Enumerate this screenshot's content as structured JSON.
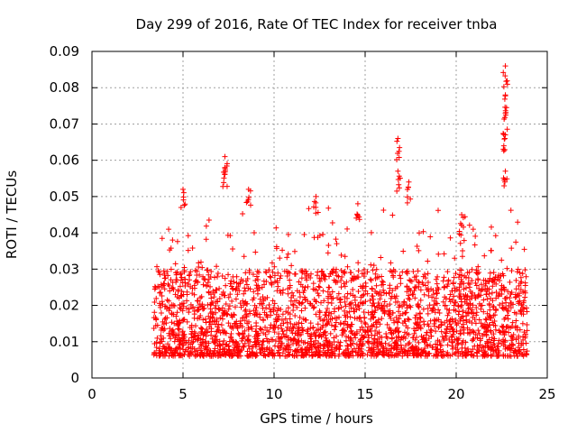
{
  "chart_data": {
    "type": "scatter",
    "title": "Day 299 of 2016, Rate Of TEC Index for receiver tnba",
    "xlabel": "GPS time / hours",
    "ylabel": "ROTI / TECUs",
    "xlim": [
      0,
      25
    ],
    "ylim": [
      0,
      0.09
    ],
    "x_ticks": [
      "0",
      "5",
      "10",
      "15",
      "20",
      "25"
    ],
    "y_ticks": [
      "0",
      "0.01",
      "0.02",
      "0.03",
      "0.04",
      "0.05",
      "0.06",
      "0.07",
      "0.08",
      "0.09"
    ],
    "grid": true,
    "marker": "+",
    "color": "#ff0000",
    "x_range_observed": [
      3.4,
      23.9
    ],
    "series": [
      {
        "name": "ROTI",
        "note": "dense scatter, baseline ~0.005-0.03 TECU across 3.4-23.9 h",
        "peaks": [
          {
            "x": 5.0,
            "y": 0.052
          },
          {
            "x": 7.3,
            "y": 0.061
          },
          {
            "x": 7.3,
            "y": 0.058
          },
          {
            "x": 8.6,
            "y": 0.052
          },
          {
            "x": 12.3,
            "y": 0.05
          },
          {
            "x": 14.6,
            "y": 0.048
          },
          {
            "x": 16.8,
            "y": 0.066
          },
          {
            "x": 16.8,
            "y": 0.057
          },
          {
            "x": 17.4,
            "y": 0.054
          },
          {
            "x": 20.3,
            "y": 0.045
          },
          {
            "x": 22.7,
            "y": 0.086
          },
          {
            "x": 22.7,
            "y": 0.078
          },
          {
            "x": 22.7,
            "y": 0.073
          },
          {
            "x": 22.7,
            "y": 0.067
          },
          {
            "x": 22.7,
            "y": 0.057
          }
        ]
      }
    ]
  }
}
